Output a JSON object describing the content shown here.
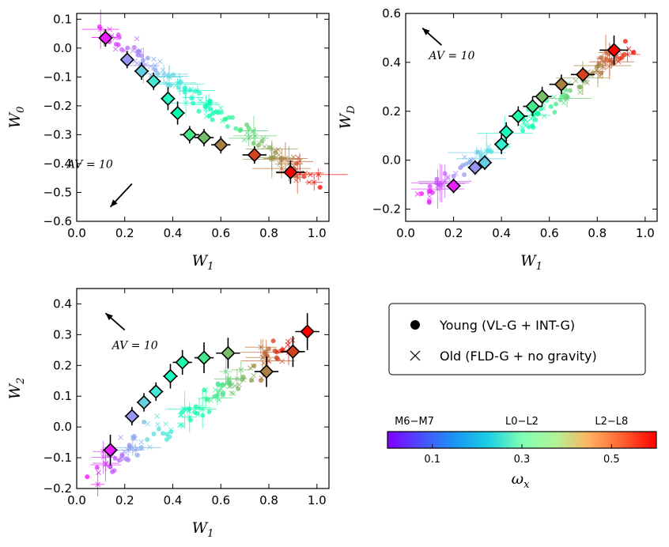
{
  "chart_data": [
    {
      "type": "scatter",
      "panel": "top-left",
      "xlabel": "W1",
      "ylabel": "W0",
      "xlim": [
        0.0,
        1.05
      ],
      "ylim": [
        -0.6,
        0.12
      ],
      "xticks": [
        "0.0",
        "0.2",
        "0.4",
        "0.6",
        "0.8",
        "1.0"
      ],
      "yticks": [
        "0.1",
        "0.0",
        "−0.1",
        "−0.2",
        "−0.3",
        "−0.4",
        "−0.5",
        "−0.6"
      ],
      "ytick_values": [
        0.1,
        0.0,
        -0.1,
        -0.2,
        -0.3,
        -0.4,
        -0.5,
        -0.6
      ],
      "annotation": {
        "text": "AV = 10",
        "arrow_from": [
          0.23,
          -0.47
        ],
        "arrow_to": [
          0.14,
          -0.55
        ]
      },
      "trend": {
        "x0": 0.1,
        "y0": 0.06,
        "x1": 1.0,
        "y1": -0.47,
        "scatter_noise": 0.035
      },
      "averages": [
        {
          "x": 0.12,
          "y": 0.035,
          "xerr": 0.02,
          "yerr": 0.03,
          "w": 0.02
        },
        {
          "x": 0.21,
          "y": -0.04,
          "xerr": 0.02,
          "yerr": 0.03,
          "w": 0.12
        },
        {
          "x": 0.27,
          "y": -0.08,
          "xerr": 0.03,
          "yerr": 0.03,
          "w": 0.18
        },
        {
          "x": 0.32,
          "y": -0.115,
          "xerr": 0.03,
          "yerr": 0.03,
          "w": 0.22
        },
        {
          "x": 0.38,
          "y": -0.175,
          "xerr": 0.03,
          "yerr": 0.04,
          "w": 0.26
        },
        {
          "x": 0.42,
          "y": -0.225,
          "xerr": 0.03,
          "yerr": 0.04,
          "w": 0.3
        },
        {
          "x": 0.47,
          "y": -0.3,
          "xerr": 0.04,
          "yerr": 0.03,
          "w": 0.38
        },
        {
          "x": 0.53,
          "y": -0.31,
          "xerr": 0.04,
          "yerr": 0.03,
          "w": 0.44
        },
        {
          "x": 0.6,
          "y": -0.335,
          "xerr": 0.04,
          "yerr": 0.03,
          "w": 0.5
        },
        {
          "x": 0.74,
          "y": -0.37,
          "xerr": 0.05,
          "yerr": 0.03,
          "w": 0.55
        },
        {
          "x": 0.89,
          "y": -0.43,
          "xerr": 0.06,
          "yerr": 0.04,
          "w": 0.6
        }
      ]
    },
    {
      "type": "scatter",
      "panel": "top-right",
      "xlabel": "W1",
      "ylabel": "WD",
      "xlim": [
        0.0,
        1.05
      ],
      "ylim": [
        -0.25,
        0.6
      ],
      "xticks": [
        "0.0",
        "0.2",
        "0.4",
        "0.6",
        "0.8",
        "1.0"
      ],
      "yticks": [
        "0.6",
        "0.4",
        "0.2",
        "0.0",
        "−0.2"
      ],
      "ytick_values": [
        0.6,
        0.4,
        0.2,
        0.0,
        -0.2
      ],
      "annotation": {
        "text": "AV = 10",
        "arrow_from": [
          0.15,
          0.47
        ],
        "arrow_to": [
          0.07,
          0.54
        ]
      },
      "trend": {
        "x0": 0.05,
        "y0": -0.17,
        "x1": 0.95,
        "y1": 0.47,
        "scatter_noise": 0.04
      },
      "averages": [
        {
          "x": 0.2,
          "y": -0.105,
          "xerr": 0.03,
          "yerr": 0.03,
          "w": 0.02
        },
        {
          "x": 0.29,
          "y": -0.03,
          "xerr": 0.03,
          "yerr": 0.03,
          "w": 0.12
        },
        {
          "x": 0.33,
          "y": -0.01,
          "xerr": 0.03,
          "yerr": 0.03,
          "w": 0.18
        },
        {
          "x": 0.4,
          "y": 0.065,
          "xerr": 0.03,
          "yerr": 0.04,
          "w": 0.24
        },
        {
          "x": 0.42,
          "y": 0.115,
          "xerr": 0.03,
          "yerr": 0.04,
          "w": 0.28
        },
        {
          "x": 0.47,
          "y": 0.18,
          "xerr": 0.04,
          "yerr": 0.04,
          "w": 0.33
        },
        {
          "x": 0.53,
          "y": 0.22,
          "xerr": 0.04,
          "yerr": 0.04,
          "w": 0.38
        },
        {
          "x": 0.57,
          "y": 0.26,
          "xerr": 0.04,
          "yerr": 0.04,
          "w": 0.44
        },
        {
          "x": 0.65,
          "y": 0.31,
          "xerr": 0.05,
          "yerr": 0.04,
          "w": 0.5
        },
        {
          "x": 0.74,
          "y": 0.35,
          "xerr": 0.05,
          "yerr": 0.03,
          "w": 0.55
        },
        {
          "x": 0.87,
          "y": 0.45,
          "xerr": 0.06,
          "yerr": 0.06,
          "w": 0.6
        }
      ]
    },
    {
      "type": "scatter",
      "panel": "bottom-left",
      "xlabel": "W1",
      "ylabel": "W2",
      "xlim": [
        0.0,
        1.05
      ],
      "ylim": [
        -0.2,
        0.45
      ],
      "xticks": [
        "0.0",
        "0.2",
        "0.4",
        "0.6",
        "0.8",
        "1.0"
      ],
      "yticks": [
        "0.4",
        "0.3",
        "0.2",
        "0.1",
        "0.0",
        "−0.1",
        "−0.2"
      ],
      "ytick_values": [
        0.4,
        0.3,
        0.2,
        0.1,
        0.0,
        -0.1,
        -0.2
      ],
      "annotation": {
        "text": "AV = 10",
        "arrow_from": [
          0.2,
          0.315
        ],
        "arrow_to": [
          0.12,
          0.37
        ]
      },
      "trend": {
        "x0": 0.05,
        "y0": -0.16,
        "x1": 0.9,
        "y1": 0.27,
        "scatter_noise": 0.045
      },
      "averages": [
        {
          "x": 0.14,
          "y": -0.075,
          "xerr": 0.03,
          "yerr": 0.05,
          "w": 0.02
        },
        {
          "x": 0.23,
          "y": 0.035,
          "xerr": 0.03,
          "yerr": 0.03,
          "w": 0.12
        },
        {
          "x": 0.28,
          "y": 0.08,
          "xerr": 0.03,
          "yerr": 0.03,
          "w": 0.18
        },
        {
          "x": 0.33,
          "y": 0.115,
          "xerr": 0.03,
          "yerr": 0.03,
          "w": 0.22
        },
        {
          "x": 0.39,
          "y": 0.165,
          "xerr": 0.03,
          "yerr": 0.04,
          "w": 0.27
        },
        {
          "x": 0.44,
          "y": 0.21,
          "xerr": 0.04,
          "yerr": 0.04,
          "w": 0.33
        },
        {
          "x": 0.53,
          "y": 0.225,
          "xerr": 0.04,
          "yerr": 0.05,
          "w": 0.38
        },
        {
          "x": 0.63,
          "y": 0.24,
          "xerr": 0.05,
          "yerr": 0.05,
          "w": 0.44
        },
        {
          "x": 0.79,
          "y": 0.18,
          "xerr": 0.05,
          "yerr": 0.05,
          "w": 0.5
        },
        {
          "x": 0.9,
          "y": 0.245,
          "xerr": 0.05,
          "yerr": 0.05,
          "w": 0.55
        },
        {
          "x": 0.96,
          "y": 0.31,
          "xerr": 0.05,
          "yerr": 0.06,
          "w": 0.6
        }
      ]
    }
  ],
  "legend": {
    "young_label": "Young (VL-G + INT-G)",
    "old_label": "Old (FLD-G + no gravity)"
  },
  "colorbar": {
    "label": "ωx",
    "range": [
      0.0,
      0.6
    ],
    "tick_values": [
      0.1,
      0.3,
      0.5
    ],
    "tick_labels": [
      "0.1",
      "0.3",
      "0.5"
    ],
    "top_labels": [
      "M6−M7",
      "L0−L2",
      "L2−L8"
    ],
    "top_label_values": [
      0.06,
      0.3,
      0.5
    ]
  }
}
